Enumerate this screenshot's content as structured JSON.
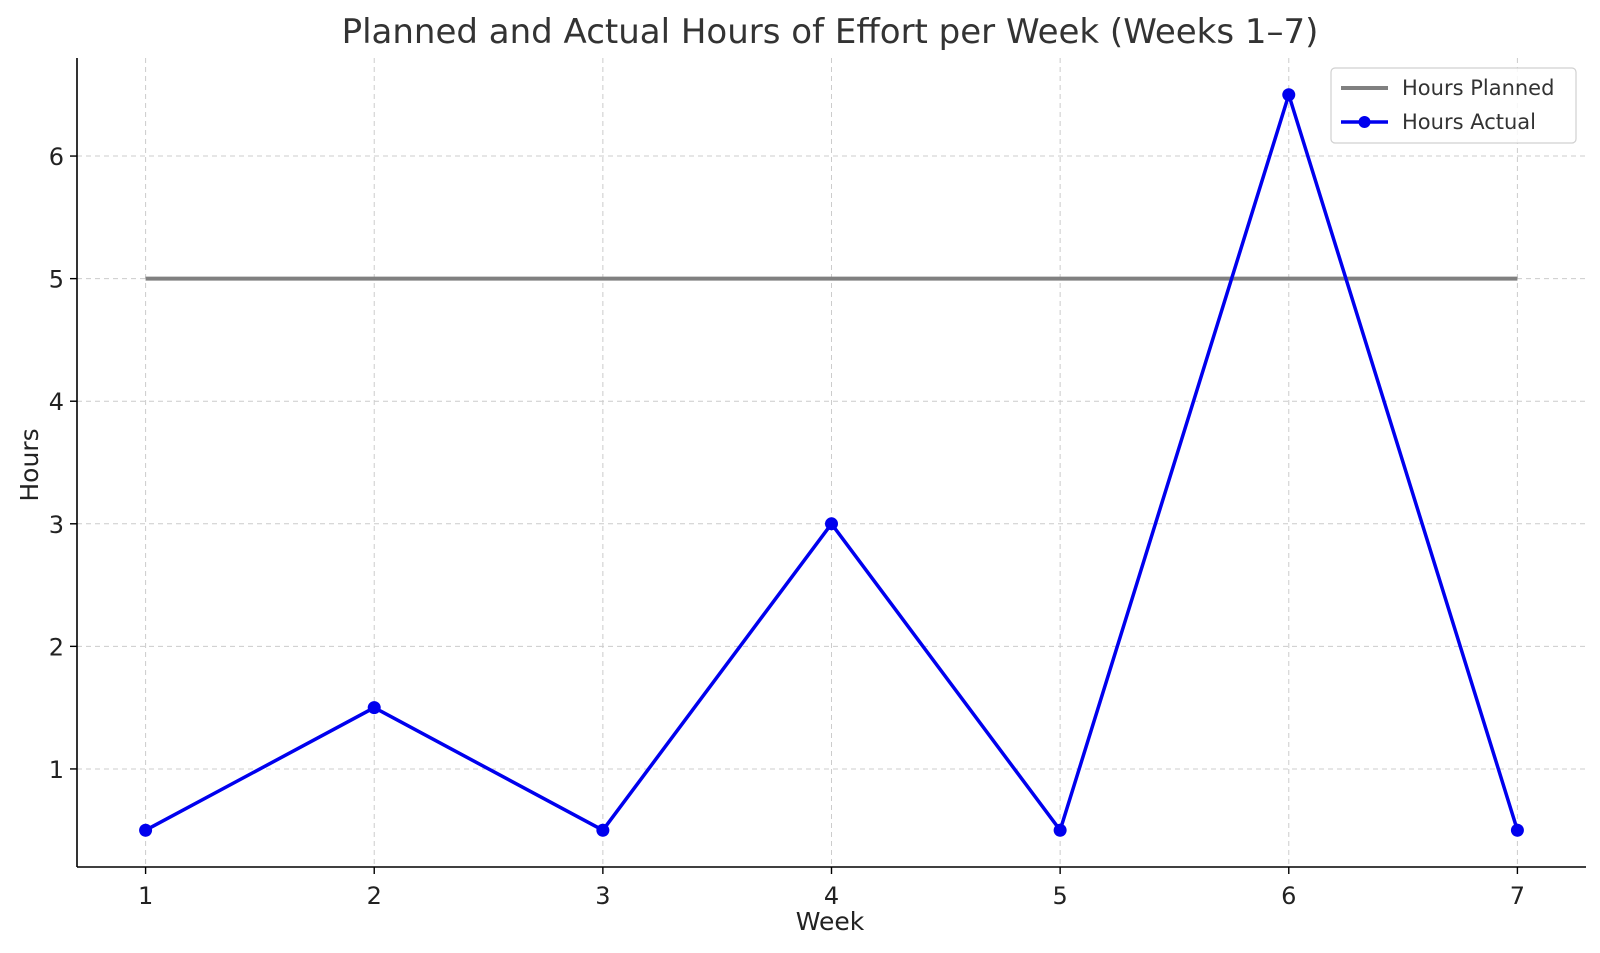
{
  "chart_data": {
    "type": "line",
    "title": "Planned and Actual Hours of Effort per Week (Weeks 1–7)",
    "xlabel": "Week",
    "ylabel": "Hours",
    "x": [
      1,
      2,
      3,
      4,
      5,
      6,
      7
    ],
    "xticks": [
      "1",
      "2",
      "3",
      "4",
      "5",
      "6",
      "7"
    ],
    "xlim": [
      0.7,
      7.3
    ],
    "yticks": [
      "1",
      "2",
      "3",
      "4",
      "5",
      "6"
    ],
    "ylim": [
      0.2,
      6.8
    ],
    "grid": true,
    "legend_position": "top-right",
    "series": [
      {
        "name": "Hours Planned",
        "values": [
          5,
          5,
          5,
          5,
          5,
          5,
          5
        ],
        "color": "#808080",
        "markers": false
      },
      {
        "name": "Hours Actual",
        "values": [
          0.5,
          1.5,
          0.5,
          3,
          0.5,
          6.5,
          0.5
        ],
        "color": "#0000ee",
        "markers": true
      }
    ]
  }
}
